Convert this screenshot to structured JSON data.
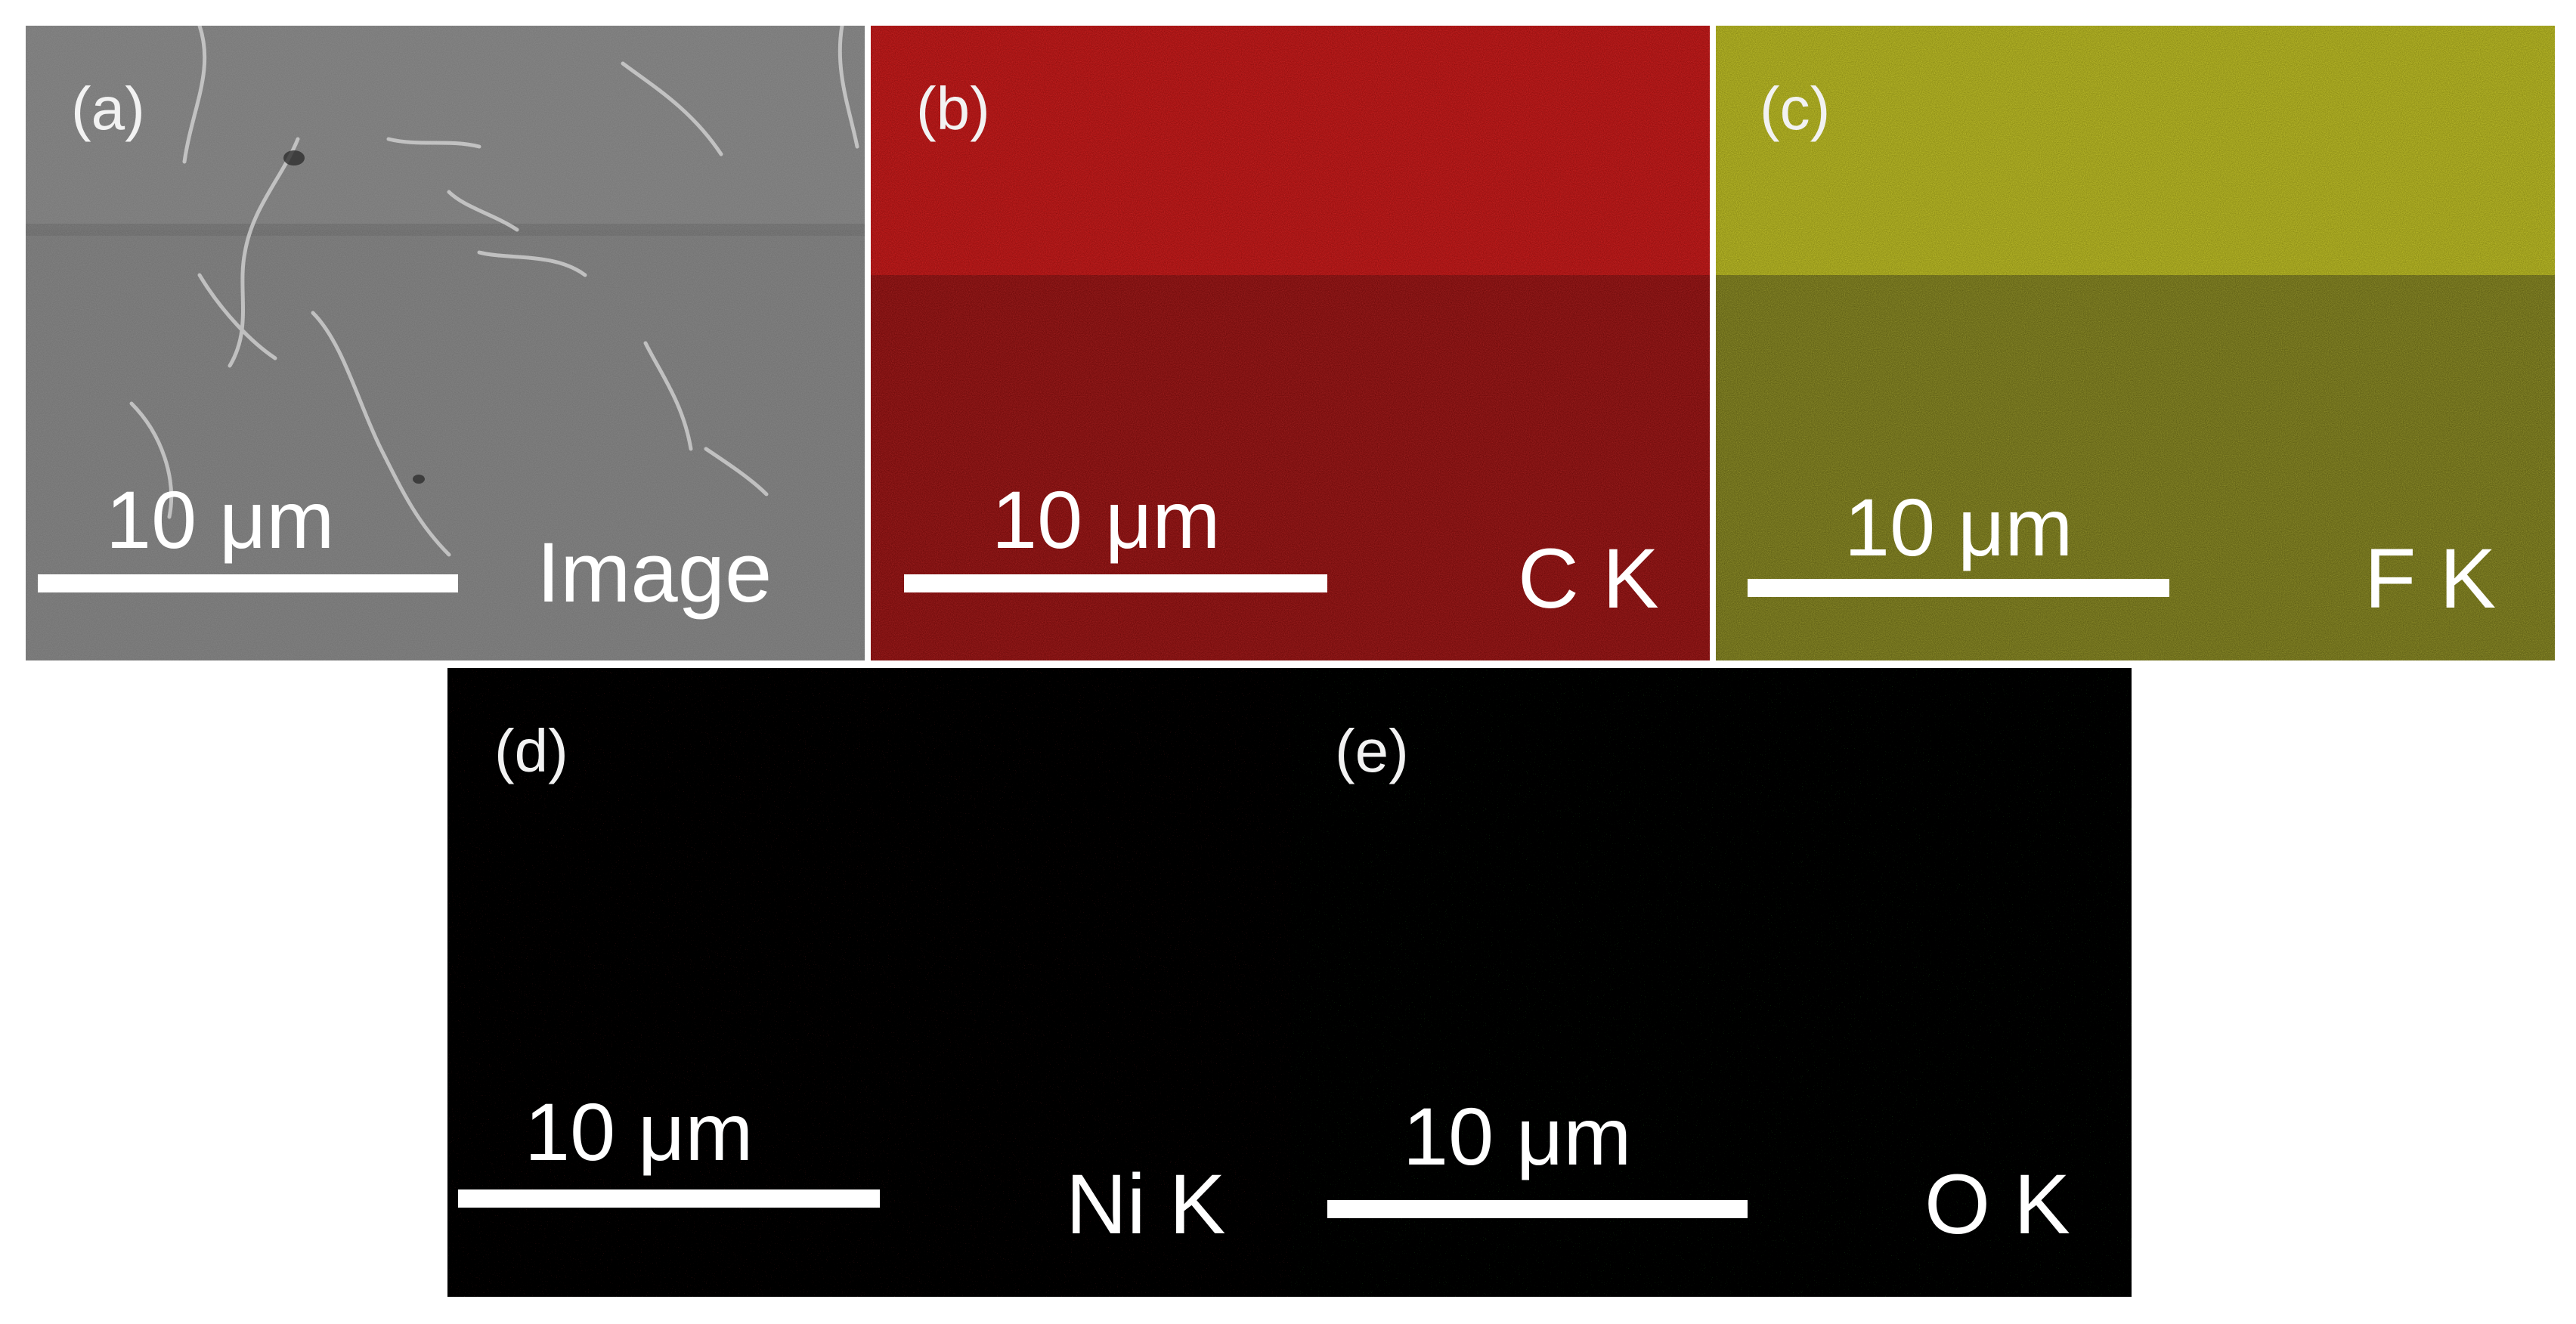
{
  "figure": {
    "panels": [
      {
        "id": "a",
        "label": "(a)",
        "scale_text": "10 μm",
        "element_label": "Image",
        "color": "#6f6f6f"
      },
      {
        "id": "b",
        "label": "(b)",
        "scale_text": "10 μm",
        "element_label": "C K",
        "color": "#d21313"
      },
      {
        "id": "c",
        "label": "(c)",
        "scale_text": "10 μm",
        "element_label": "F K",
        "color": "#c8c81e"
      },
      {
        "id": "d",
        "label": "(d)",
        "scale_text": "10 μm",
        "element_label": "Ni K",
        "color": "#000000"
      },
      {
        "id": "e",
        "label": "(e)",
        "scale_text": "10 μm",
        "element_label": "O K",
        "color": "#000000"
      }
    ]
  }
}
